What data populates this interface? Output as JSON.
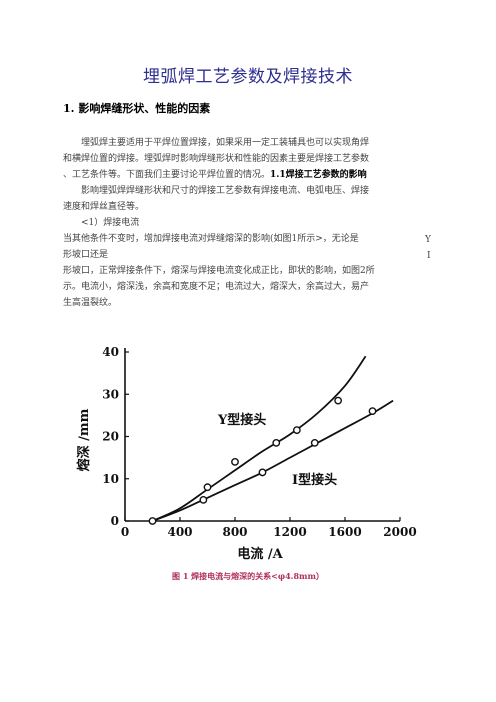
{
  "doc": {
    "title": "埋弧焊工艺参数及焊接技术",
    "section1_heading": "1. 影响焊缝形状、性能的因素",
    "para1_line1": "埋弧焊主要适用于平焊位置焊接，如果采用一定工装辅具也可以实现角焊",
    "para1_line2": "和横焊位置的焊接。埋弧焊时影响焊缝形状和性能的因素主要是焊接工艺参数",
    "para1_line3_a": "、工艺条件等。下面我们主要讨论平焊位置的情况。",
    "para1_line3_b": "1.1焊接工艺参数的影响",
    "para2_line1": "影响埋弧焊焊缝形状和尺寸的焊接工艺参数有焊接电流、电弧电压、焊接",
    "para2_line2": "速度和焊丝直径等。",
    "item1": "<1）焊接电流",
    "para3_line1": "当其他条件不变时，增加焊接电流对焊缝熔深的影响(如图1所示>，无论是",
    "para3_right1": "Y",
    "para3_line2": "形坡口还是",
    "para3_right2": "I",
    "para3_line3": "形坡口，正常焊接条件下，熔深与焊接电流变化成正比，即状的影响，如图2所",
    "para3_line4": "示。电流小，熔深浅，余高和宽度不足；电流过大，熔深大，余高过大，易产",
    "para3_line5": "生高温裂纹。",
    "caption": "图 1 焊接电流与熔深的关系<φ4.8mm）"
  },
  "chart_data": {
    "type": "line",
    "xlabel": "电流 /A",
    "ylabel": "熔深 /mm",
    "xlim": [
      0,
      2000
    ],
    "ylim": [
      0,
      40
    ],
    "xticks": [
      0,
      400,
      800,
      1200,
      1600,
      2000
    ],
    "yticks": [
      0,
      10,
      20,
      30,
      40
    ],
    "grid": false,
    "series": [
      {
        "name": "Y型接头",
        "markers": [
          [
            600,
            8
          ],
          [
            800,
            14
          ],
          [
            1100,
            18.5
          ],
          [
            1250,
            21.5
          ],
          [
            1550,
            28.5
          ]
        ],
        "curve": [
          [
            200,
            0
          ],
          [
            400,
            3
          ],
          [
            600,
            7.5
          ],
          [
            800,
            12
          ],
          [
            1000,
            16.5
          ],
          [
            1200,
            20.5
          ],
          [
            1400,
            25.5
          ],
          [
            1600,
            32
          ],
          [
            1750,
            39
          ]
        ]
      },
      {
        "name": "I型接头",
        "markers": [
          [
            200,
            0
          ],
          [
            570,
            5
          ],
          [
            1000,
            11.5
          ],
          [
            1380,
            18.5
          ],
          [
            1800,
            26
          ]
        ],
        "curve": [
          [
            200,
            0
          ],
          [
            400,
            2.5
          ],
          [
            600,
            5.5
          ],
          [
            800,
            8.5
          ],
          [
            1000,
            11.5
          ],
          [
            1200,
            15
          ],
          [
            1400,
            18.5
          ],
          [
            1600,
            22
          ],
          [
            1800,
            25.5
          ],
          [
            1950,
            28.5
          ]
        ]
      }
    ]
  }
}
